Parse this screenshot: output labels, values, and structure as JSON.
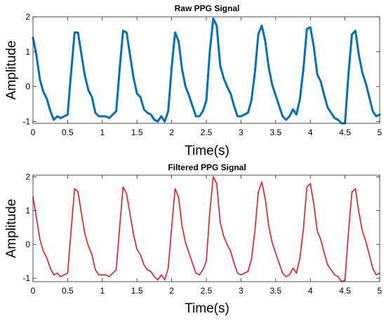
{
  "chart_data": [
    {
      "type": "line",
      "title": "Raw PPG Signal",
      "xlabel": "Time(s)",
      "ylabel": "Amplitude",
      "xlim": [
        0,
        5
      ],
      "ylim": [
        -1.05,
        2.0
      ],
      "xticks": [
        0,
        0.5,
        1,
        1.5,
        2,
        2.5,
        3,
        3.5,
        4,
        4.5,
        5
      ],
      "xtick_labels": [
        "0",
        "0.5",
        "1",
        "1.5",
        "2",
        "2.5",
        "3",
        "3.5",
        "4",
        "4.5",
        "5"
      ],
      "yticks": [
        -1,
        0,
        1,
        2
      ],
      "ytick_labels": [
        "-1",
        "0",
        "1",
        "2"
      ],
      "color": "#0072BD",
      "line_width": 3,
      "grid": false,
      "series": [
        {
          "x": [
            0,
            0.05,
            0.1,
            0.15,
            0.2,
            0.25,
            0.3,
            0.35,
            0.4,
            0.45,
            0.5,
            0.55,
            0.6,
            0.65,
            0.7,
            0.75,
            0.8,
            0.85,
            0.9,
            0.95,
            1.0,
            1.05,
            1.1,
            1.15,
            1.2,
            1.25,
            1.3,
            1.35,
            1.4,
            1.45,
            1.5,
            1.55,
            1.6,
            1.65,
            1.7,
            1.75,
            1.8,
            1.85,
            1.9,
            1.95,
            2.0,
            2.05,
            2.1,
            2.15,
            2.2,
            2.25,
            2.3,
            2.35,
            2.4,
            2.45,
            2.5,
            2.55,
            2.6,
            2.65,
            2.7,
            2.75,
            2.8,
            2.85,
            2.9,
            2.95,
            3.0,
            3.05,
            3.1,
            3.15,
            3.2,
            3.25,
            3.3,
            3.35,
            3.4,
            3.45,
            3.5,
            3.55,
            3.6,
            3.65,
            3.7,
            3.75,
            3.8,
            3.85,
            3.9,
            3.95,
            4.0,
            4.05,
            4.1,
            4.15,
            4.2,
            4.25,
            4.3,
            4.35,
            4.4,
            4.45,
            4.5,
            4.55,
            4.6,
            4.65,
            4.7,
            4.75,
            4.8,
            4.85,
            4.9,
            4.95,
            5.0
          ],
          "y": [
            1.4,
            0.9,
            0.2,
            -0.15,
            -0.35,
            -0.7,
            -0.95,
            -0.85,
            -0.9,
            -0.85,
            -0.8,
            0.4,
            1.55,
            1.55,
            0.9,
            0.3,
            -0.1,
            -0.3,
            -0.75,
            -0.85,
            -0.85,
            -0.85,
            -0.9,
            -0.8,
            -0.7,
            0.5,
            1.6,
            1.55,
            0.9,
            0.25,
            -0.2,
            -0.3,
            -0.65,
            -0.75,
            -0.8,
            -0.95,
            -1.0,
            -0.85,
            -1.0,
            -0.7,
            0.55,
            1.55,
            1.3,
            0.5,
            0.0,
            -0.25,
            -0.55,
            -0.85,
            -0.85,
            -0.7,
            -0.4,
            1.0,
            1.95,
            1.75,
            0.6,
            0.25,
            0.0,
            -0.2,
            -0.55,
            -0.85,
            -0.85,
            -0.8,
            -0.75,
            -0.4,
            0.4,
            1.5,
            1.75,
            1.3,
            0.55,
            0.05,
            -0.25,
            -0.55,
            -0.85,
            -0.95,
            -0.85,
            -0.65,
            -0.8,
            -0.35,
            0.5,
            1.65,
            1.7,
            1.15,
            0.35,
            0.15,
            -0.25,
            -0.6,
            -0.75,
            -0.9,
            -0.95,
            -1.05,
            -1.05,
            0.35,
            1.5,
            1.6,
            0.9,
            0.4,
            0.1,
            -0.3,
            -0.7,
            -0.85,
            -0.8
          ]
        }
      ]
    },
    {
      "type": "line",
      "title": "Filtered PPG Signal",
      "xlabel": "Time(s)",
      "ylabel": "Amplitude",
      "xlim": [
        0,
        5
      ],
      "ylim": [
        -1.1,
        2.05
      ],
      "xticks": [
        0,
        0.5,
        1,
        1.5,
        2,
        2.5,
        3,
        3.5,
        4,
        4.5,
        5
      ],
      "xtick_labels": [
        "0",
        "0.5",
        "1",
        "1.5",
        "2",
        "2.5",
        "3",
        "3.5",
        "4",
        "4.5",
        "5"
      ],
      "yticks": [
        -1,
        0,
        1,
        2
      ],
      "ytick_labels": [
        "-1",
        "0",
        "1",
        "2"
      ],
      "color": "#E8191C",
      "line_width": 1.6,
      "grid": false,
      "series": [
        {
          "x": [
            0,
            0.05,
            0.1,
            0.15,
            0.2,
            0.25,
            0.3,
            0.35,
            0.4,
            0.45,
            0.5,
            0.55,
            0.6,
            0.65,
            0.7,
            0.75,
            0.8,
            0.85,
            0.9,
            0.95,
            1.0,
            1.05,
            1.1,
            1.15,
            1.2,
            1.25,
            1.3,
            1.35,
            1.4,
            1.45,
            1.5,
            1.55,
            1.6,
            1.65,
            1.7,
            1.75,
            1.8,
            1.85,
            1.9,
            1.95,
            2.0,
            2.05,
            2.1,
            2.15,
            2.2,
            2.25,
            2.3,
            2.35,
            2.4,
            2.45,
            2.5,
            2.55,
            2.6,
            2.65,
            2.7,
            2.75,
            2.8,
            2.85,
            2.9,
            2.95,
            3.0,
            3.05,
            3.1,
            3.15,
            3.2,
            3.25,
            3.3,
            3.35,
            3.4,
            3.45,
            3.5,
            3.55,
            3.6,
            3.65,
            3.7,
            3.75,
            3.8,
            3.85,
            3.9,
            3.95,
            4.0,
            4.05,
            4.1,
            4.15,
            4.2,
            4.25,
            4.3,
            4.35,
            4.4,
            4.45,
            4.5,
            4.55,
            4.6,
            4.65,
            4.7,
            4.75,
            4.8,
            4.85,
            4.9,
            4.95,
            5.0
          ],
          "y": [
            1.4,
            0.8,
            0.15,
            -0.2,
            -0.4,
            -0.7,
            -0.9,
            -0.85,
            -0.95,
            -0.9,
            -0.85,
            0.4,
            1.65,
            1.55,
            0.9,
            0.3,
            -0.05,
            -0.3,
            -0.75,
            -0.9,
            -0.9,
            -0.9,
            -0.95,
            -0.85,
            -0.75,
            0.5,
            1.7,
            1.5,
            0.9,
            0.3,
            -0.15,
            -0.3,
            -0.6,
            -0.75,
            -0.8,
            -0.95,
            -1.05,
            -0.9,
            -1.05,
            -0.7,
            0.5,
            1.65,
            1.4,
            0.55,
            0.05,
            -0.25,
            -0.55,
            -0.85,
            -0.9,
            -0.75,
            -0.5,
            0.95,
            2.0,
            1.8,
            0.65,
            0.25,
            0.0,
            -0.2,
            -0.55,
            -0.85,
            -0.9,
            -0.85,
            -0.8,
            -0.45,
            0.4,
            1.55,
            1.85,
            1.35,
            0.55,
            0.05,
            -0.25,
            -0.55,
            -0.85,
            -0.95,
            -0.9,
            -0.7,
            -0.85,
            -0.4,
            0.45,
            1.7,
            1.8,
            1.2,
            0.4,
            0.15,
            -0.25,
            -0.6,
            -0.75,
            -0.9,
            -0.95,
            -1.1,
            -1.05,
            0.35,
            1.55,
            1.65,
            0.95,
            0.4,
            0.1,
            -0.3,
            -0.7,
            -0.9,
            -0.85
          ]
        }
      ]
    }
  ]
}
